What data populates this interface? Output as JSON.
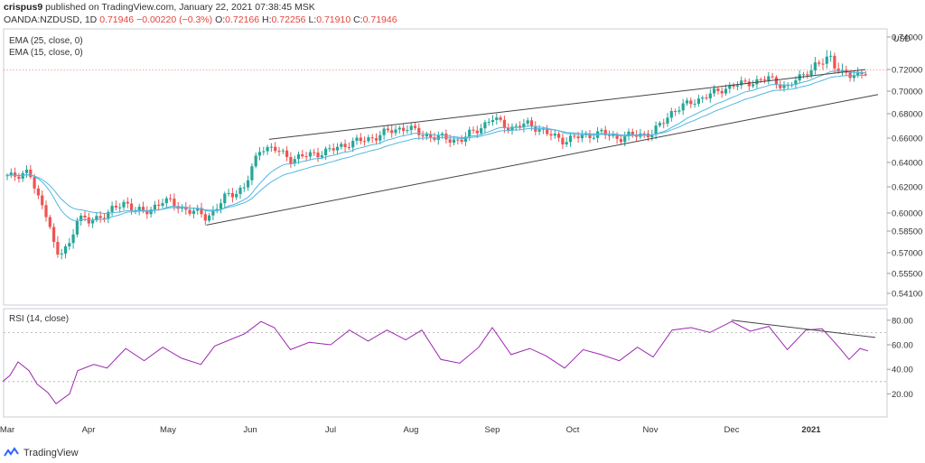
{
  "header": {
    "author": "crispus9",
    "published_text": "published on TradingView.com, January 22, 2021 07:38:45 MSK"
  },
  "symbol": {
    "name": "OANDA:NZDUSD, 1D",
    "last": "0.71946",
    "change": "−0.00220 (−0.3%)",
    "open_label": "O:",
    "open": "0.72166",
    "high_label": "H:",
    "high": "0.72256",
    "low_label": "L:",
    "low": "0.71910",
    "close_label": "C:",
    "close": "0.71946"
  },
  "indicators": {
    "ema1": "EMA (25, close, 0)",
    "ema2": "EMA (15, close, 0)",
    "rsi": "RSI (14, close)"
  },
  "footer": {
    "brand": "TradingView"
  },
  "colors": {
    "up": "#26a69a",
    "down": "#ef5350",
    "ema": "#52b6e0",
    "rsi": "#9c27b0",
    "price_line": "#f28b82"
  },
  "chart_data": [
    {
      "type": "candlestick",
      "currency_label": "USD",
      "y_ticks": [
        "0.74000",
        "0.72000",
        "0.70000",
        "0.68000",
        "0.66000",
        "0.64000",
        "0.62000",
        "0.60000",
        "0.58500",
        "0.57000",
        "0.55500",
        "0.54100"
      ],
      "x_ticks": [
        "Mar",
        "Apr",
        "May",
        "Jun",
        "Jul",
        "Aug",
        "Sep",
        "Oct",
        "Nov",
        "Dec",
        "2021"
      ],
      "series_close": [
        {
          "x": "Feb 24",
          "y": 0.632
        },
        {
          "x": "Mar 2",
          "y": 0.628
        },
        {
          "x": "Mar 9",
          "y": 0.633
        },
        {
          "x": "Mar 12",
          "y": 0.612
        },
        {
          "x": "Mar 16",
          "y": 0.598
        },
        {
          "x": "Mar 19",
          "y": 0.567
        },
        {
          "x": "Mar 24",
          "y": 0.575
        },
        {
          "x": "Mar 27",
          "y": 0.598
        },
        {
          "x": "Apr 1",
          "y": 0.592
        },
        {
          "x": "Apr 8",
          "y": 0.6
        },
        {
          "x": "Apr 15",
          "y": 0.608
        },
        {
          "x": "Apr 22",
          "y": 0.599
        },
        {
          "x": "Apr 29",
          "y": 0.61
        },
        {
          "x": "May 6",
          "y": 0.604
        },
        {
          "x": "May 13",
          "y": 0.599
        },
        {
          "x": "May 15",
          "y": 0.596
        },
        {
          "x": "May 22",
          "y": 0.612
        },
        {
          "x": "May 29",
          "y": 0.62
        },
        {
          "x": "Jun 5",
          "y": 0.653
        },
        {
          "x": "Jun 10",
          "y": 0.651
        },
        {
          "x": "Jun 16",
          "y": 0.643
        },
        {
          "x": "Jun 23",
          "y": 0.646
        },
        {
          "x": "Jul 1",
          "y": 0.65
        },
        {
          "x": "Jul 8",
          "y": 0.656
        },
        {
          "x": "Jul 15",
          "y": 0.659
        },
        {
          "x": "Jul 22",
          "y": 0.665
        },
        {
          "x": "Jul 29",
          "y": 0.669
        },
        {
          "x": "Aug 5",
          "y": 0.663
        },
        {
          "x": "Aug 12",
          "y": 0.66
        },
        {
          "x": "Aug 19",
          "y": 0.658
        },
        {
          "x": "Aug 26",
          "y": 0.668
        },
        {
          "x": "Sep 1",
          "y": 0.676
        },
        {
          "x": "Sep 8",
          "y": 0.668
        },
        {
          "x": "Sep 15",
          "y": 0.672
        },
        {
          "x": "Sep 21",
          "y": 0.664
        },
        {
          "x": "Sep 28",
          "y": 0.658
        },
        {
          "x": "Oct 5",
          "y": 0.662
        },
        {
          "x": "Oct 12",
          "y": 0.664
        },
        {
          "x": "Oct 19",
          "y": 0.66
        },
        {
          "x": "Oct 26",
          "y": 0.663
        },
        {
          "x": "Nov 2",
          "y": 0.664
        },
        {
          "x": "Nov 9",
          "y": 0.682
        },
        {
          "x": "Nov 16",
          "y": 0.69
        },
        {
          "x": "Nov 23",
          "y": 0.697
        },
        {
          "x": "Dec 1",
          "y": 0.705
        },
        {
          "x": "Dec 8",
          "y": 0.708
        },
        {
          "x": "Dec 15",
          "y": 0.712
        },
        {
          "x": "Dec 22",
          "y": 0.703
        },
        {
          "x": "Dec 29",
          "y": 0.718
        },
        {
          "x": "Jan 5",
          "y": 0.724
        },
        {
          "x": "Jan 8",
          "y": 0.728
        },
        {
          "x": "Jan 12",
          "y": 0.718
        },
        {
          "x": "Jan 15",
          "y": 0.713
        },
        {
          "x": "Jan 19",
          "y": 0.717
        },
        {
          "x": "Jan 22",
          "y": 0.71946
        }
      ]
    },
    {
      "type": "line",
      "title": "RSI (14, close)",
      "y_ticks": [
        "80.00",
        "60.00",
        "40.00",
        "20.00"
      ],
      "reference_lines": [
        70,
        30
      ],
      "series": [
        {
          "values": [
            {
              "x": "Feb 24",
              "y": 30
            },
            {
              "x": "Mar 2",
              "y": 35
            },
            {
              "x": "Mar 5",
              "y": 46
            },
            {
              "x": "Mar 9",
              "y": 39
            },
            {
              "x": "Mar 12",
              "y": 28
            },
            {
              "x": "Mar 16",
              "y": 21
            },
            {
              "x": "Mar 19",
              "y": 12
            },
            {
              "x": "Mar 24",
              "y": 20
            },
            {
              "x": "Mar 27",
              "y": 39
            },
            {
              "x": "Apr 3",
              "y": 44
            },
            {
              "x": "Apr 8",
              "y": 41
            },
            {
              "x": "Apr 15",
              "y": 57
            },
            {
              "x": "Apr 22",
              "y": 47
            },
            {
              "x": "Apr 29",
              "y": 58
            },
            {
              "x": "May 6",
              "y": 49
            },
            {
              "x": "May 13",
              "y": 44
            },
            {
              "x": "May 18",
              "y": 59
            },
            {
              "x": "May 29",
              "y": 69
            },
            {
              "x": "Jun 5",
              "y": 79
            },
            {
              "x": "Jun 10",
              "y": 74
            },
            {
              "x": "Jun 16",
              "y": 56
            },
            {
              "x": "Jun 23",
              "y": 62
            },
            {
              "x": "Jul 1",
              "y": 60
            },
            {
              "x": "Jul 8",
              "y": 72
            },
            {
              "x": "Jul 15",
              "y": 63
            },
            {
              "x": "Jul 22",
              "y": 72
            },
            {
              "x": "Jul 29",
              "y": 64
            },
            {
              "x": "Aug 5",
              "y": 72
            },
            {
              "x": "Aug 12",
              "y": 48
            },
            {
              "x": "Aug 19",
              "y": 45
            },
            {
              "x": "Aug 26",
              "y": 58
            },
            {
              "x": "Sep 1",
              "y": 74
            },
            {
              "x": "Sep 8",
              "y": 52
            },
            {
              "x": "Sep 15",
              "y": 57
            },
            {
              "x": "Sep 21",
              "y": 51
            },
            {
              "x": "Sep 28",
              "y": 41
            },
            {
              "x": "Oct 5",
              "y": 56
            },
            {
              "x": "Oct 12",
              "y": 52
            },
            {
              "x": "Oct 19",
              "y": 47
            },
            {
              "x": "Oct 26",
              "y": 58
            },
            {
              "x": "Nov 2",
              "y": 50
            },
            {
              "x": "Nov 9",
              "y": 72
            },
            {
              "x": "Nov 16",
              "y": 74
            },
            {
              "x": "Nov 23",
              "y": 70
            },
            {
              "x": "Dec 1",
              "y": 79
            },
            {
              "x": "Dec 8",
              "y": 71
            },
            {
              "x": "Dec 15",
              "y": 75
            },
            {
              "x": "Dec 22",
              "y": 56
            },
            {
              "x": "Dec 29",
              "y": 72
            },
            {
              "x": "Jan 5",
              "y": 73
            },
            {
              "x": "Jan 8",
              "y": 66
            },
            {
              "x": "Jan 12",
              "y": 56
            },
            {
              "x": "Jan 15",
              "y": 48
            },
            {
              "x": "Jan 19",
              "y": 57
            },
            {
              "x": "Jan 22",
              "y": 55
            }
          ]
        }
      ]
    }
  ]
}
